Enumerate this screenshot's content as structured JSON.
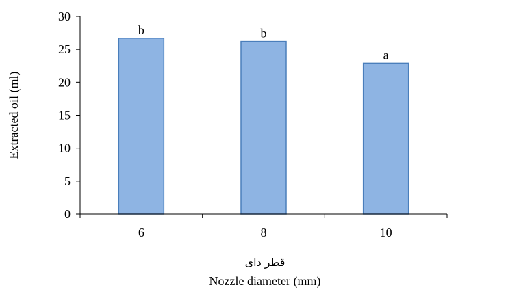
{
  "chart_data": {
    "type": "bar",
    "categories": [
      "6",
      "8",
      "10"
    ],
    "values": [
      26.7,
      26.2,
      22.9
    ],
    "data_labels": [
      "b",
      "b",
      "a"
    ],
    "title": "",
    "xlabel": "Nozzle diameter (mm)",
    "xlabel_fa": "قطر دای",
    "ylabel": "Extracted oil (ml)",
    "ylim": [
      0,
      30
    ],
    "yticks": [
      0,
      5,
      10,
      15,
      20,
      25,
      30
    ],
    "grid": false,
    "legend": "none",
    "colors": {
      "bar_fill": "#8EB4E3",
      "bar_stroke": "#4A7EBB",
      "axis": "#000000"
    }
  }
}
